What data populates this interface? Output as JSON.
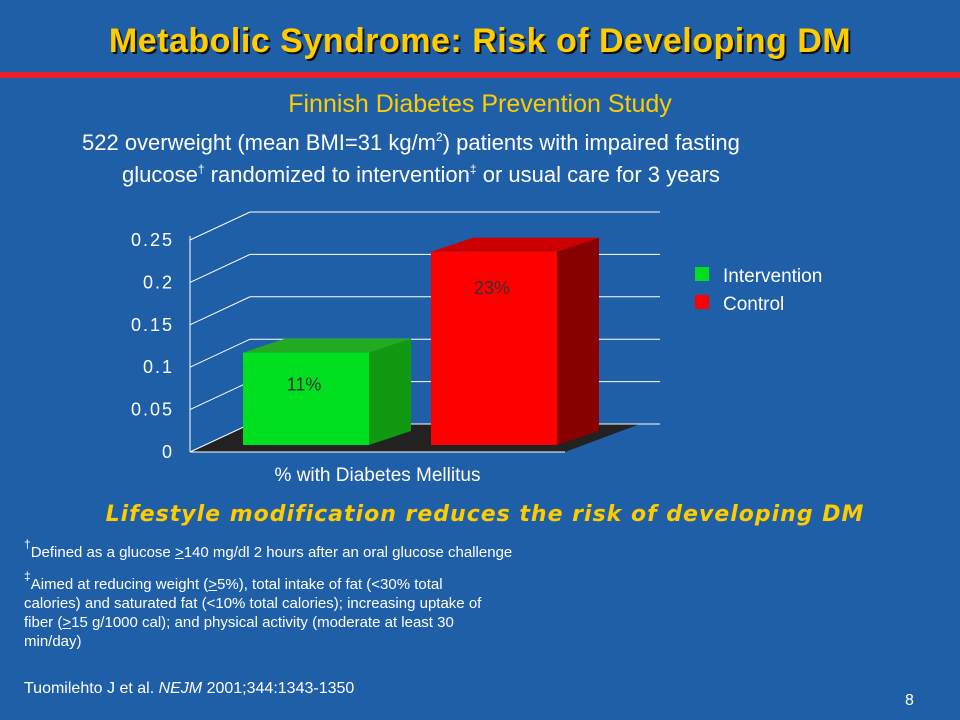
{
  "title": "Metabolic Syndrome: Risk of Developing DM",
  "subtitle": "Finnish Diabetes Prevention Study",
  "description": {
    "line1_a": "522 overweight (mean BMI=31 kg/m",
    "line1_sup": "2",
    "line1_b": ") patients with impaired fasting",
    "line2_a": "glucose",
    "line2_sup1": "†",
    "line2_b": " randomized to intervention",
    "line2_sup2": "‡",
    "line2_c": " or usual care for 3 years"
  },
  "chart_data": {
    "type": "bar",
    "categories": [
      "% with Diabetes Mellitus"
    ],
    "series": [
      {
        "name": "Intervention",
        "values": [
          0.11
        ],
        "label": "11%",
        "color": "#00e020"
      },
      {
        "name": "Control",
        "values": [
          0.23
        ],
        "label": "23%",
        "color": "#ff0000"
      }
    ],
    "ylim": [
      0,
      0.25
    ],
    "yticks": [
      "0",
      "0.05",
      "0.1",
      "0.15",
      "0.2",
      "0.25"
    ],
    "grid": true,
    "legend_position": "right",
    "style": "3d"
  },
  "conclusion": "Lifestyle modification reduces the risk of developing DM",
  "notes": {
    "dagger": {
      "mark": "†",
      "text_a": "Defined as a glucose ",
      "text_u": ">",
      "text_b": "140 mg/dl 2 hours after an oral glucose challenge"
    },
    "ddagger": {
      "mark": "‡",
      "text_a": "Aimed at reducing weight (",
      "text_u1": ">",
      "text_b": "5%), total intake of fat (<30% total calories) and saturated fat (<10% total calories); increasing uptake of fiber (",
      "text_u2": ">",
      "text_c": "15 g/1000 cal); and physical activity (moderate at least 30 min/day)"
    }
  },
  "citation": {
    "a": "Tuomilehto J et al. ",
    "journal": "NEJM",
    "b": " 2001;344:1343-1350"
  },
  "page_number": "8"
}
